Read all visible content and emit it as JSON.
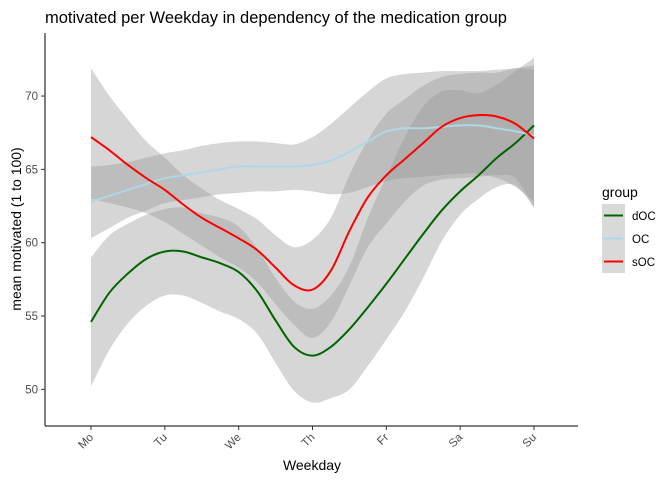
{
  "chart_data": {
    "type": "line",
    "title": "motivated per Weekday in dependency of the medication group",
    "xlabel": "Weekday",
    "ylabel": "mean motivated (1 to 100)",
    "categories": [
      "Mo",
      "Tu",
      "We",
      "Th",
      "Fr",
      "Sa",
      "Su"
    ],
    "ylim": [
      47.5,
      74.3
    ],
    "yticks": [
      50,
      55,
      60,
      65,
      70
    ],
    "grid": false,
    "legend_placement": "right",
    "legend_title": "group",
    "series": [
      {
        "name": "dOC",
        "color": "#006400",
        "x": [
          0,
          0.25,
          0.5,
          0.75,
          1,
          1.25,
          1.5,
          1.75,
          2,
          2.25,
          2.5,
          2.75,
          3,
          3.25,
          3.5,
          3.75,
          4,
          4.25,
          4.5,
          4.75,
          5,
          5.25,
          5.5,
          5.75,
          6
        ],
        "values": [
          54.6,
          56.6,
          57.9,
          58.9,
          59.4,
          59.4,
          59.0,
          58.6,
          58.0,
          56.7,
          54.7,
          52.9,
          52.3,
          52.9,
          54.1,
          55.6,
          57.2,
          58.9,
          60.6,
          62.2,
          63.5,
          64.6,
          65.8,
          66.8,
          68.0
        ],
        "ci_upper": [
          59.0,
          60.5,
          61.3,
          61.9,
          62.3,
          62.4,
          62.0,
          61.7,
          61.1,
          59.6,
          57.6,
          56.0,
          55.5,
          56.4,
          58.4,
          61.7,
          64.5,
          67.2,
          69.3,
          70.3,
          70.4,
          70.2,
          70.8,
          71.7,
          72.6
        ],
        "ci_lower": [
          50.2,
          52.7,
          54.5,
          55.7,
          56.4,
          56.4,
          55.9,
          55.3,
          54.8,
          53.8,
          51.8,
          49.9,
          49.1,
          49.4,
          50.0,
          51.6,
          53.4,
          55.3,
          57.6,
          60.1,
          61.9,
          63.0,
          63.8,
          63.9,
          62.4
        ]
      },
      {
        "name": "OC",
        "color": "#add8e6",
        "x": [
          0,
          0.25,
          0.5,
          0.75,
          1,
          1.25,
          1.5,
          1.75,
          2,
          2.25,
          2.5,
          2.75,
          3,
          3.25,
          3.5,
          3.75,
          4,
          4.25,
          4.5,
          4.75,
          5,
          5.25,
          5.5,
          5.75,
          6
        ],
        "values": [
          62.8,
          63.2,
          63.6,
          64.0,
          64.4,
          64.6,
          64.8,
          65.0,
          65.2,
          65.2,
          65.2,
          65.2,
          65.3,
          65.6,
          66.2,
          66.9,
          67.6,
          67.8,
          67.8,
          67.9,
          68.0,
          68.0,
          67.8,
          67.6,
          67.3
        ],
        "ci_upper": [
          65.2,
          65.3,
          65.5,
          65.8,
          66.1,
          66.3,
          66.6,
          66.8,
          66.9,
          66.9,
          66.8,
          66.7,
          67.2,
          68.1,
          69.2,
          70.3,
          71.2,
          71.5,
          71.6,
          71.7,
          71.7,
          71.7,
          71.8,
          71.9,
          72.1
        ],
        "ci_lower": [
          60.3,
          61.0,
          61.7,
          62.2,
          62.7,
          62.9,
          63.1,
          63.3,
          63.4,
          63.5,
          63.5,
          63.6,
          63.5,
          63.3,
          63.4,
          63.8,
          64.2,
          64.4,
          64.5,
          64.6,
          64.7,
          64.7,
          64.4,
          63.8,
          62.8
        ]
      },
      {
        "name": "sOC",
        "color": "#ff0000",
        "x": [
          0,
          0.25,
          0.5,
          0.75,
          1,
          1.25,
          1.5,
          1.75,
          2,
          2.25,
          2.5,
          2.75,
          3,
          3.25,
          3.5,
          3.75,
          4,
          4.25,
          4.5,
          4.75,
          5,
          5.25,
          5.5,
          5.75,
          6
        ],
        "values": [
          67.2,
          66.3,
          65.3,
          64.4,
          63.6,
          62.6,
          61.7,
          61.0,
          60.3,
          59.5,
          58.3,
          57.1,
          56.8,
          58.1,
          60.8,
          63.1,
          64.6,
          65.7,
          66.8,
          67.9,
          68.5,
          68.7,
          68.6,
          68.1,
          67.1
        ],
        "ci_upper": [
          71.9,
          70.0,
          68.4,
          66.9,
          65.8,
          64.6,
          63.7,
          62.9,
          62.3,
          61.6,
          60.5,
          59.7,
          60.2,
          61.7,
          64.6,
          67.0,
          68.8,
          69.8,
          70.7,
          71.3,
          71.5,
          71.6,
          71.6,
          71.9,
          71.8
        ],
        "ci_lower": [
          63.0,
          62.7,
          62.4,
          62.0,
          61.4,
          60.6,
          59.8,
          59.0,
          58.3,
          57.3,
          55.8,
          54.4,
          53.5,
          54.6,
          57.1,
          59.7,
          61.3,
          62.8,
          63.9,
          64.3,
          64.4,
          64.5,
          64.6,
          64.4,
          62.4
        ]
      }
    ]
  }
}
